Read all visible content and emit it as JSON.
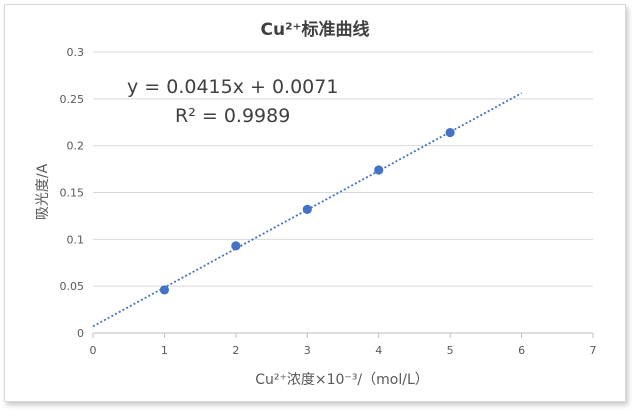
{
  "chart_data": {
    "type": "scatter",
    "title": "Cu²⁺标准曲线",
    "xlabel": "Cu²⁺浓度×10⁻³/（mol/L）",
    "ylabel": "吸光度/A",
    "xlim": [
      0,
      7
    ],
    "ylim": [
      0,
      0.3
    ],
    "x_ticks": [
      "0",
      "1",
      "2",
      "3",
      "4",
      "5",
      "6",
      "7"
    ],
    "y_ticks": [
      "0",
      "0.05",
      "0.1",
      "0.15",
      "0.2",
      "0.25",
      "0.3"
    ],
    "grid": "horizontal",
    "legend": "none",
    "series": [
      {
        "x": [
          1,
          2,
          3,
          4,
          5
        ],
        "y": [
          0.046,
          0.093,
          0.132,
          0.174,
          0.214
        ],
        "color": "#4472C4",
        "marker": "circle"
      }
    ],
    "trendline": {
      "type": "linear",
      "slope": 0.0415,
      "intercept": 0.0071,
      "x_range": [
        0,
        6
      ],
      "color": "#4472C4",
      "style": "dotted",
      "equation": "y = 0.0415x + 0.0071",
      "r_squared": "R² = 0.9989"
    }
  }
}
